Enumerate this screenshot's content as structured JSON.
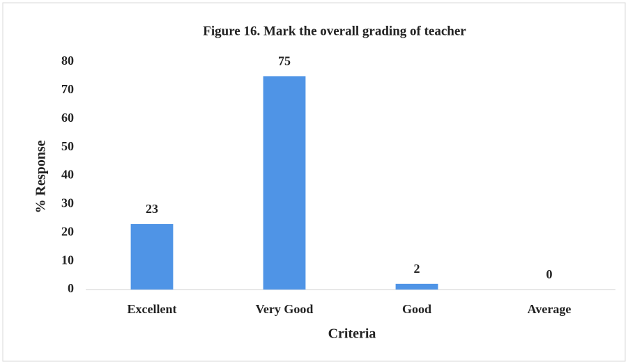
{
  "chart_data": {
    "type": "bar",
    "title": "Figure 16.  Mark the overall grading of teacher",
    "x_label": "Criteria",
    "y_label": "% Response",
    "categories": [
      "Excellent",
      "Very Good",
      "Good",
      "Average"
    ],
    "values": [
      23,
      75,
      2,
      0
    ],
    "color": "#4f94e6",
    "ylim": [
      0,
      80
    ],
    "yticks": [
      0,
      10,
      20,
      30,
      40,
      50,
      60,
      70,
      80
    ],
    "grid": false
  }
}
